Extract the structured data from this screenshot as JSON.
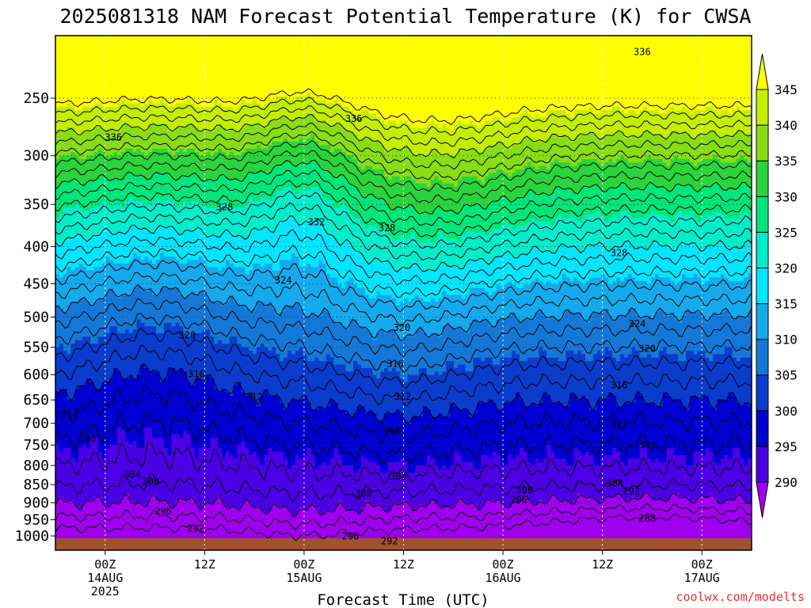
{
  "title": "2025081318 NAM Forecast Potential Temperature (K) for CWSA",
  "credit": "coolwx.com/modelts",
  "chart_data": {
    "type": "area",
    "title": "2025081318 NAM Forecast Potential Temperature (K) for CWSA",
    "xlabel": "Forecast Time (UTC)",
    "ylabel": "",
    "x_range_hours": [
      -6,
      78
    ],
    "x_ticks": [
      {
        "hour": 0,
        "lines": [
          "00Z",
          "14AUG",
          "2025"
        ]
      },
      {
        "hour": 12,
        "lines": [
          "12Z"
        ]
      },
      {
        "hour": 24,
        "lines": [
          "00Z",
          "15AUG"
        ]
      },
      {
        "hour": 36,
        "lines": [
          "12Z"
        ]
      },
      {
        "hour": 48,
        "lines": [
          "00Z",
          "16AUG"
        ]
      },
      {
        "hour": 60,
        "lines": [
          "12Z"
        ]
      },
      {
        "hour": 72,
        "lines": [
          "00Z",
          "17AUG"
        ]
      }
    ],
    "y_scale": "log-pressure",
    "y_range_hpa": [
      1015,
      200
    ],
    "y_ticks": [
      250,
      300,
      350,
      400,
      450,
      500,
      550,
      600,
      650,
      700,
      750,
      800,
      850,
      900,
      950,
      1000
    ],
    "grid": "dotted",
    "colorbar": {
      "levels": [
        290,
        295,
        300,
        305,
        310,
        315,
        320,
        325,
        330,
        335,
        340,
        345
      ],
      "colors": [
        "#a000f0",
        "#4b00e6",
        "#0000d2",
        "#0a3ccd",
        "#1478d7",
        "#14aaec",
        "#00e6ff",
        "#00eecc",
        "#00e67a",
        "#2ad43c",
        "#88dd14",
        "#c4ee00",
        "#ffff00"
      ]
    },
    "contour_labels": [
      {
        "value": "336",
        "hour": 1,
        "hpa": 283
      },
      {
        "value": "336",
        "hour": 30,
        "hpa": 267
      },
      {
        "value": "336",
        "hour": 64.8,
        "hpa": 216
      },
      {
        "value": "328",
        "hour": 14.4,
        "hpa": 353
      },
      {
        "value": "332",
        "hour": 25.5,
        "hpa": 370
      },
      {
        "value": "328",
        "hour": 34,
        "hpa": 377
      },
      {
        "value": "328",
        "hour": 62,
        "hpa": 408
      },
      {
        "value": "324",
        "hour": 21.5,
        "hpa": 445
      },
      {
        "value": "324",
        "hour": 64.2,
        "hpa": 511
      },
      {
        "value": "320",
        "hour": 9.9,
        "hpa": 530
      },
      {
        "value": "320",
        "hour": 35.8,
        "hpa": 517
      },
      {
        "value": "320",
        "hour": 65.4,
        "hpa": 553
      },
      {
        "value": "316",
        "hour": 11,
        "hpa": 599
      },
      {
        "value": "316",
        "hour": 35,
        "hpa": 580
      },
      {
        "value": "316",
        "hour": 62,
        "hpa": 620
      },
      {
        "value": "312",
        "hour": -4.3,
        "hpa": 678
      },
      {
        "value": "312",
        "hour": 18,
        "hpa": 644
      },
      {
        "value": "312",
        "hour": 35.9,
        "hpa": 643
      },
      {
        "value": "312",
        "hour": 62,
        "hpa": 703
      },
      {
        "value": "308",
        "hour": -2.1,
        "hpa": 735
      },
      {
        "value": "308",
        "hour": 34.5,
        "hpa": 717
      },
      {
        "value": "308",
        "hour": 65.4,
        "hpa": 750
      },
      {
        "value": "304",
        "hour": 3.3,
        "hpa": 823
      },
      {
        "value": "304",
        "hour": 35.4,
        "hpa": 829
      },
      {
        "value": "304",
        "hour": 61.5,
        "hpa": 846
      },
      {
        "value": "300",
        "hour": 5.5,
        "hpa": 842
      },
      {
        "value": "300",
        "hour": 31.2,
        "hpa": 874
      },
      {
        "value": "300",
        "hour": 50.6,
        "hpa": 865
      },
      {
        "value": "296",
        "hour": 7,
        "hpa": 924
      },
      {
        "value": "296",
        "hour": 49.9,
        "hpa": 892
      },
      {
        "value": "296",
        "hour": 29.6,
        "hpa": 1001
      },
      {
        "value": "292",
        "hour": 63.5,
        "hpa": 868
      },
      {
        "value": "292",
        "hour": 10.9,
        "hpa": 976
      },
      {
        "value": "292",
        "hour": 34.3,
        "hpa": 1017
      },
      {
        "value": "288",
        "hour": 65.4,
        "hpa": 946
      }
    ]
  }
}
